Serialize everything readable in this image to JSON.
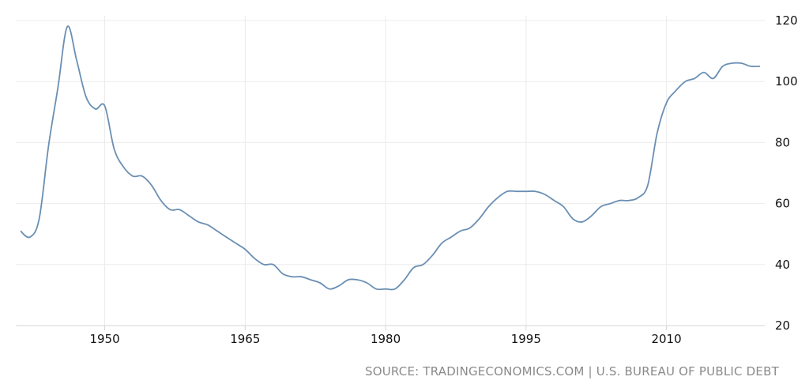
{
  "chart_data": {
    "type": "line",
    "title": "",
    "xlabel": "",
    "ylabel": "",
    "xlim": [
      1940.5,
      2020.5
    ],
    "ylim": [
      20,
      125
    ],
    "x_ticks": [
      1950,
      1965,
      1980,
      1995,
      2010
    ],
    "y_ticks": [
      20,
      40,
      60,
      80,
      100,
      120
    ],
    "grid": true,
    "legend": "none",
    "line_color": "#6a8fb3",
    "series": [
      {
        "x": [
          1941,
          1942,
          1943,
          1944,
          1945,
          1946,
          1947,
          1948,
          1949,
          1950,
          1951,
          1952,
          1953,
          1954,
          1955,
          1956,
          1957,
          1958,
          1959,
          1960,
          1961,
          1962,
          1963,
          1964,
          1965,
          1966,
          1967,
          1968,
          1969,
          1970,
          1971,
          1972,
          1973,
          1974,
          1975,
          1976,
          1977,
          1978,
          1979,
          1980,
          1981,
          1982,
          1983,
          1984,
          1985,
          1986,
          1987,
          1988,
          1989,
          1990,
          1991,
          1992,
          1993,
          1994,
          1995,
          1996,
          1997,
          1998,
          1999,
          2000,
          2001,
          2002,
          2003,
          2004,
          2005,
          2006,
          2007,
          2008,
          2009,
          2010,
          2011,
          2012,
          2013,
          2014,
          2015,
          2016,
          2017,
          2018,
          2019,
          2020
        ],
        "y": [
          51,
          49,
          55,
          79,
          98,
          118,
          107,
          95,
          91,
          92,
          78,
          72,
          69,
          69,
          66,
          61,
          58,
          58,
          56,
          54,
          53,
          51,
          49,
          47,
          45,
          42,
          40,
          40,
          37,
          36,
          36,
          35,
          34,
          32,
          33,
          35,
          35,
          34,
          32,
          32,
          32,
          35,
          39,
          40,
          43,
          47,
          49,
          51,
          52,
          55,
          59,
          62,
          64,
          64,
          64,
          64,
          63,
          61,
          59,
          55,
          54,
          56,
          59,
          60,
          61,
          61,
          62,
          66,
          83,
          93,
          97,
          100,
          101,
          103,
          101,
          105,
          106,
          106,
          105,
          105
        ]
      }
    ]
  },
  "source": "SOURCE: TRADINGECONOMICS.COM | U.S. BUREAU OF PUBLIC DEBT"
}
